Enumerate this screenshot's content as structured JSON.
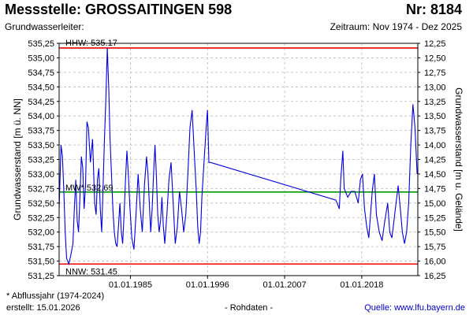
{
  "header": {
    "title": "Messstelle: GROSSAITINGEN 598",
    "number": "Nr: 8184",
    "aquifer": "Grundwasserleiter:",
    "period": "Zeitraum: Nov 1974 - Dez 2025"
  },
  "footer": {
    "note": "* Abflussjahr (1974-2024)",
    "created": "erstellt:  15.01.2026",
    "rawdata": "- Rohdaten -",
    "source": "Quelle:  www.lfu.bayern.de"
  },
  "colors": {
    "series": "#0000dd",
    "extreme": "#ee0000",
    "mean": "#009900",
    "grid": "#bbbbbb"
  },
  "chart_data": {
    "type": "line",
    "title": "",
    "ylabel": "Grundwasserstand [m ü. NN]",
    "ylabel_right": "Grundwasserstand [m u. Gelände]",
    "ylim": [
      531.25,
      535.25
    ],
    "ylim_right": [
      16.25,
      12.25
    ],
    "xlim": [
      1974.83,
      2026.0
    ],
    "yticks": [
      "531,25",
      "531,50",
      "531,75",
      "532,00",
      "532,25",
      "532,50",
      "532,75",
      "533,00",
      "533,25",
      "533,50",
      "533,75",
      "534,00",
      "534,25",
      "534,50",
      "534,75",
      "535,00",
      "535,25"
    ],
    "yticks_right": [
      "16,25",
      "16,00",
      "15,75",
      "15,50",
      "15,25",
      "15,00",
      "14,75",
      "14,50",
      "14,25",
      "14,00",
      "13,75",
      "13,50",
      "13,25",
      "13,00",
      "12,75",
      "12,50",
      "12,25"
    ],
    "xticks": [
      {
        "label": "01.01.1985",
        "value": 1985.0
      },
      {
        "label": "01.01.1996",
        "value": 1996.0
      },
      {
        "label": "01.01.2007",
        "value": 2007.0
      },
      {
        "label": "01.01.2018",
        "value": 2018.0
      }
    ],
    "reference_lines": [
      {
        "label": "HHW: 535.17",
        "value": 535.17,
        "kind": "extreme"
      },
      {
        "label": "MW* 532.69",
        "value": 532.69,
        "kind": "mean"
      },
      {
        "label": "NNW: 531.45",
        "value": 531.45,
        "kind": "extreme"
      }
    ],
    "series": [
      {
        "x": [
          1974.83,
          1975.1,
          1975.3,
          1975.5,
          1975.7,
          1975.9,
          1976.2,
          1976.5,
          1976.8,
          1977.0,
          1977.2,
          1977.4,
          1977.6,
          1977.8,
          1978.0,
          1978.2,
          1978.4,
          1978.6,
          1978.8,
          1979.0,
          1979.3,
          1979.6,
          1979.9,
          1980.1,
          1980.3,
          1980.5,
          1980.7,
          1980.9,
          1981.1,
          1981.3,
          1981.5,
          1981.7,
          1981.9,
          1982.1,
          1982.3,
          1982.5,
          1982.7,
          1982.9,
          1983.1,
          1983.3,
          1983.5,
          1983.7,
          1983.9,
          1984.1,
          1984.3,
          1984.5,
          1984.7,
          1984.9,
          1985.2,
          1985.5,
          1985.8,
          1986.1,
          1986.4,
          1986.7,
          1987.0,
          1987.3,
          1987.5,
          1987.7,
          1987.9,
          1988.1,
          1988.3,
          1988.5,
          1988.7,
          1988.9,
          1989.1,
          1989.3,
          1989.5,
          1989.7,
          1989.9,
          1990.2,
          1990.5,
          1990.8,
          1991.1,
          1991.4,
          1991.7,
          1992.0,
          1992.3,
          1992.6,
          1992.9,
          1993.2,
          1993.5,
          1993.8,
          1994.1,
          1994.4,
          1994.6,
          1994.8,
          1995.0,
          1995.2,
          1995.5,
          1995.8,
          1996.0,
          1996.2,
          1996.4,
          2014.3,
          2014.5,
          2014.8,
          2015.0,
          2015.3,
          2015.5,
          2016.0,
          2016.5,
          2017.0,
          2017.5,
          2017.8,
          2018.1,
          2018.4,
          2018.7,
          2019.0,
          2019.5,
          2019.8,
          2020.1,
          2020.5,
          2020.9,
          2021.3,
          2021.7,
          2022.0,
          2022.3,
          2022.6,
          2022.9,
          2023.2,
          2023.5,
          2023.8,
          2024.1,
          2024.4,
          2024.7,
          2025.0,
          2025.3,
          2025.6,
          2025.9
        ],
        "y": [
          532.4,
          533.5,
          533.3,
          532.7,
          532.0,
          531.55,
          531.45,
          531.6,
          531.8,
          532.4,
          532.9,
          532.2,
          532.0,
          532.6,
          533.3,
          533.1,
          532.4,
          532.8,
          533.9,
          533.8,
          533.2,
          533.6,
          532.5,
          532.3,
          532.9,
          533.1,
          532.4,
          532.0,
          532.8,
          533.6,
          534.3,
          535.17,
          534.5,
          533.6,
          533.0,
          532.4,
          532.0,
          531.8,
          531.75,
          532.1,
          532.5,
          532.0,
          531.8,
          532.3,
          532.9,
          533.4,
          533.0,
          532.5,
          531.9,
          531.7,
          532.3,
          533.0,
          532.4,
          532.0,
          532.8,
          533.3,
          533.0,
          532.5,
          532.0,
          532.4,
          533.0,
          533.5,
          533.0,
          532.3,
          532.0,
          532.2,
          532.6,
          532.1,
          531.8,
          532.3,
          532.9,
          533.2,
          532.5,
          531.8,
          532.1,
          532.7,
          532.4,
          532.0,
          532.3,
          533.0,
          533.8,
          534.1,
          533.4,
          532.7,
          532.1,
          531.8,
          532.0,
          532.6,
          533.2,
          533.8,
          534.1,
          533.2,
          533.2,
          532.55,
          532.5,
          532.4,
          532.9,
          533.4,
          532.75,
          532.6,
          532.7,
          532.7,
          532.5,
          532.9,
          533.0,
          532.4,
          532.1,
          531.9,
          532.7,
          533.0,
          532.3,
          532.0,
          531.85,
          532.2,
          532.5,
          532.0,
          531.9,
          532.2,
          532.5,
          532.8,
          532.4,
          532.0,
          531.8,
          532.0,
          532.5,
          533.5,
          534.2,
          533.8,
          533.0
        ]
      }
    ],
    "grid": true
  }
}
